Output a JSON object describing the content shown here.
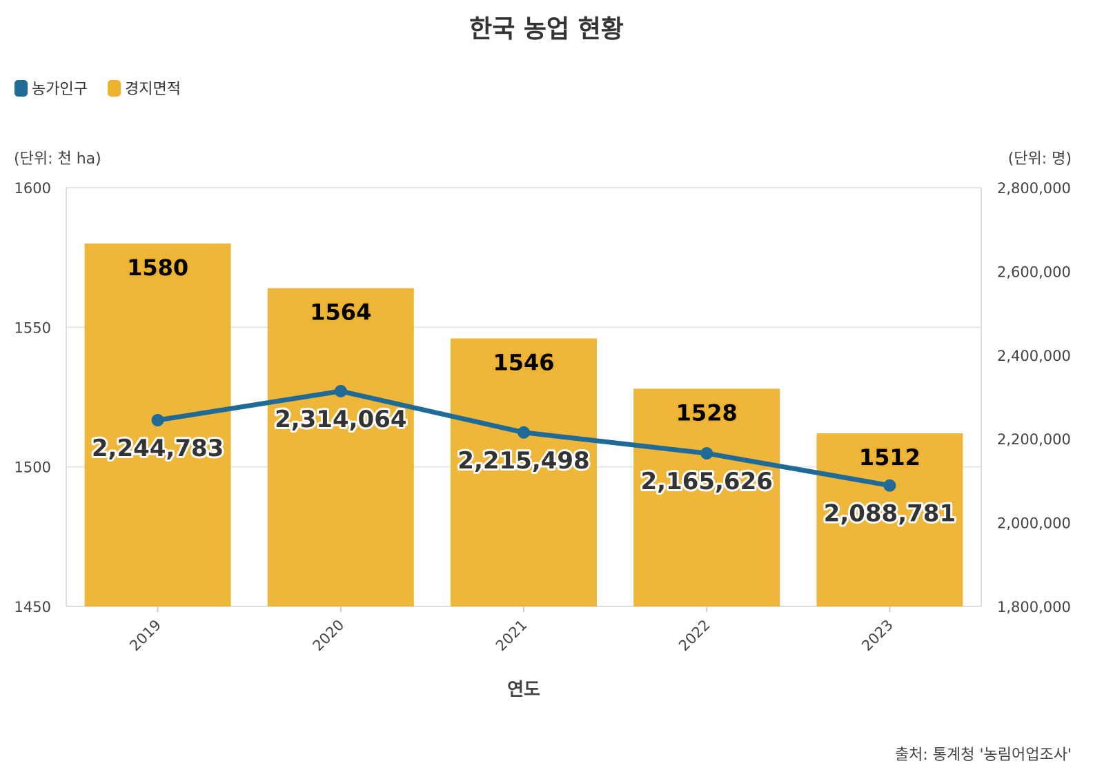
{
  "chart_data": {
    "type": "bar+line",
    "title": "한국 농업 현황",
    "xlabel": "연도",
    "categories": [
      "2019",
      "2020",
      "2021",
      "2022",
      "2023"
    ],
    "series": [
      {
        "name": "경지면적",
        "type": "bar",
        "axis": "left",
        "color": "#EDB32E",
        "values": [
          1580,
          1564,
          1546,
          1528,
          1512
        ],
        "labels": [
          "1580",
          "1564",
          "1546",
          "1528",
          "1512"
        ]
      },
      {
        "name": "농가인구",
        "type": "line",
        "axis": "right",
        "color": "#1F6A96",
        "values": [
          2244783,
          2314064,
          2215498,
          2165626,
          2088781
        ],
        "labels": [
          "2,244,783",
          "2,314,064",
          "2,215,498",
          "2,165,626",
          "2,088,781"
        ]
      }
    ],
    "y_left": {
      "label": "(단위: 천 ha)",
      "ylim": [
        1450,
        1600
      ],
      "ticks": [
        1450,
        1500,
        1550,
        1600
      ],
      "tick_labels": [
        "1450",
        "1500",
        "1550",
        "1600"
      ]
    },
    "y_right": {
      "label": "(단위: 명)",
      "ylim": [
        1800000,
        2800000
      ],
      "ticks": [
        1800000,
        2000000,
        2200000,
        2400000,
        2600000,
        2800000
      ],
      "tick_labels": [
        "1,800,000",
        "2,000,000",
        "2,200,000",
        "2,400,000",
        "2,600,000",
        "2,800,000"
      ]
    },
    "legend": {
      "placement": "top-left",
      "items": [
        {
          "label": "농가인구",
          "color": "#1F6A96"
        },
        {
          "label": "경지면적",
          "color": "#EDB32E"
        }
      ]
    },
    "grid": true,
    "source": "출처: 통계청 '농림어업조사'"
  }
}
